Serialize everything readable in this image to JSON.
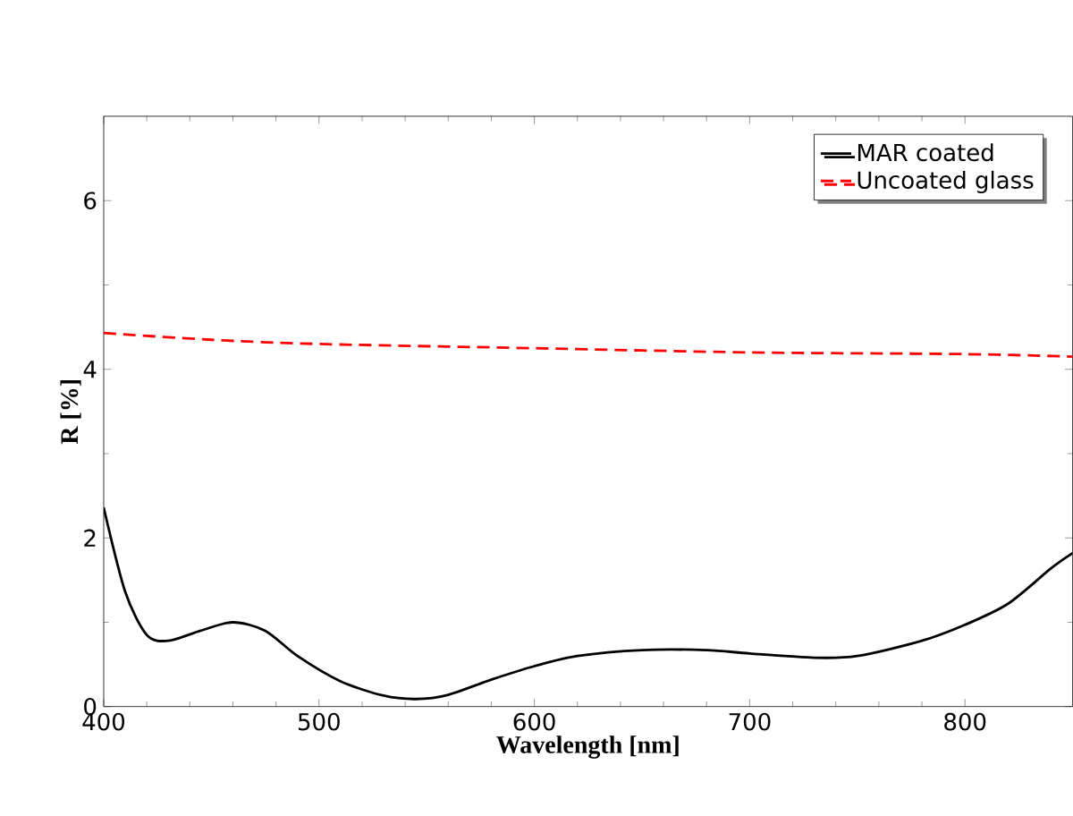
{
  "chart_data": {
    "type": "line",
    "xlabel": "Wavelength [nm]",
    "ylabel": "R [%]",
    "xlim": [
      400,
      850
    ],
    "ylim": [
      0,
      7
    ],
    "xticks": [
      400,
      500,
      600,
      700,
      800
    ],
    "yticks": [
      0,
      2,
      4,
      6
    ],
    "grid": false,
    "legend": "top right",
    "series": [
      {
        "name": "MAR coated",
        "color": "#000000",
        "line_style": "solid",
        "x": [
          400,
          410,
          420,
          430,
          445,
          460,
          475,
          490,
          510,
          530,
          545,
          560,
          580,
          600,
          620,
          650,
          680,
          700,
          730,
          750,
          780,
          800,
          820,
          840,
          850
        ],
        "values": [
          2.36,
          1.36,
          0.85,
          0.78,
          0.9,
          1.0,
          0.9,
          0.6,
          0.3,
          0.13,
          0.09,
          0.14,
          0.32,
          0.48,
          0.6,
          0.67,
          0.67,
          0.63,
          0.58,
          0.6,
          0.78,
          0.97,
          1.22,
          1.64,
          1.82
        ]
      },
      {
        "name": "Uncoated glass",
        "color": "#ff0000",
        "line_style": "dashed",
        "x": [
          400,
          450,
          500,
          600,
          700,
          800,
          850
        ],
        "values": [
          4.43,
          4.35,
          4.3,
          4.25,
          4.2,
          4.18,
          4.15
        ]
      }
    ]
  }
}
